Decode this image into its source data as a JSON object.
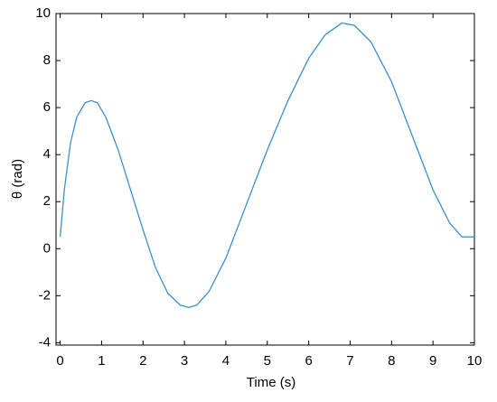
{
  "chart_data": {
    "type": "line",
    "xlabel": "Time (s)",
    "ylabel": "θ (rad)",
    "x": [
      0,
      0.1,
      0.25,
      0.4,
      0.6,
      0.75,
      0.9,
      1.1,
      1.4,
      1.7,
      2,
      2.3,
      2.6,
      2.9,
      3.1,
      3.3,
      3.6,
      4,
      4.5,
      5,
      5.5,
      6,
      6.4,
      6.8,
      7.1,
      7.5,
      8,
      8.5,
      9,
      9.4,
      9.7,
      10
    ],
    "series": [
      {
        "color": "#3a8fd0",
        "values": [
          0.5,
          2.5,
          4.5,
          5.6,
          6.2,
          6.3,
          6.2,
          5.6,
          4.2,
          2.5,
          0.8,
          -0.8,
          -1.9,
          -2.4,
          -2.5,
          -2.4,
          -1.8,
          -0.4,
          1.9,
          4.2,
          6.3,
          8.1,
          9.1,
          9.6,
          9.5,
          8.8,
          7.1,
          4.8,
          2.5,
          1.1,
          0.5,
          0.5
        ]
      }
    ],
    "xlim": [
      -0.1,
      10
    ],
    "ylim": [
      -4.1,
      10
    ],
    "xticks": [
      0,
      1,
      2,
      3,
      4,
      5,
      6,
      7,
      8,
      9,
      10
    ],
    "yticks": [
      -4,
      -2,
      0,
      2,
      4,
      6,
      8,
      10
    ]
  }
}
